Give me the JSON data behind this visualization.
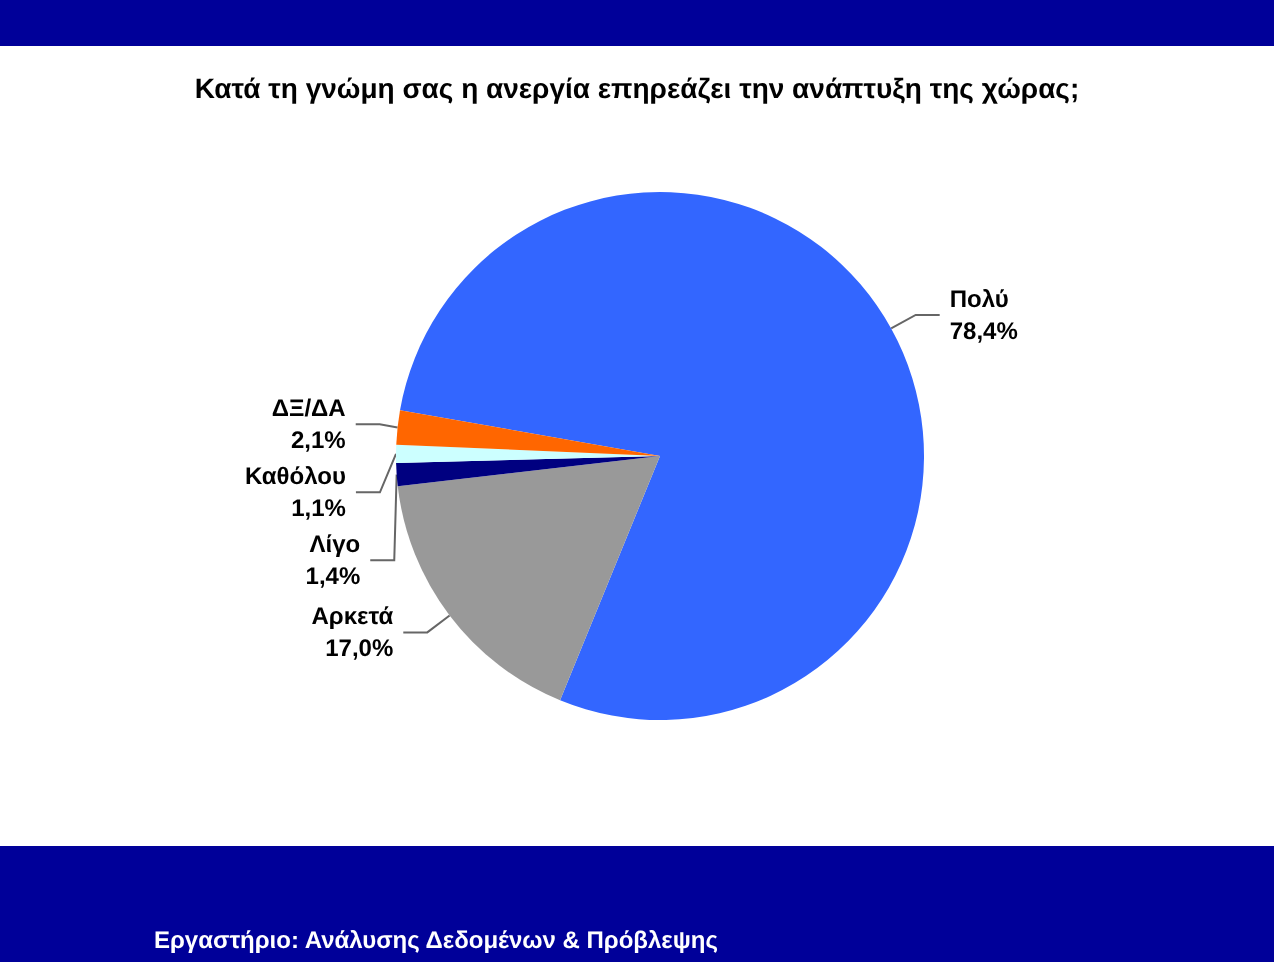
{
  "chart_data": {
    "type": "pie",
    "title": "Κατά τη γνώμη σας η ανεργία επηρεάζει την ανάπτυξη της χώρας;",
    "categories": [
      "Πολύ",
      "Αρκετά",
      "Λίγο",
      "Καθόλου",
      "ΔΞ/ΔΑ"
    ],
    "values": [
      78.4,
      17.0,
      1.4,
      1.1,
      2.1
    ],
    "colors": [
      "#3366ff",
      "#999999",
      "#000080",
      "#ccffff",
      "#ff6600"
    ],
    "value_labels": [
      "78,4%",
      "17,0%",
      "1,4%",
      "1,1%",
      "2,1%"
    ],
    "annotations": [
      "Εργαστήριο: Ανάλυσης Δεδομένων & Πρόβλεψης"
    ]
  }
}
